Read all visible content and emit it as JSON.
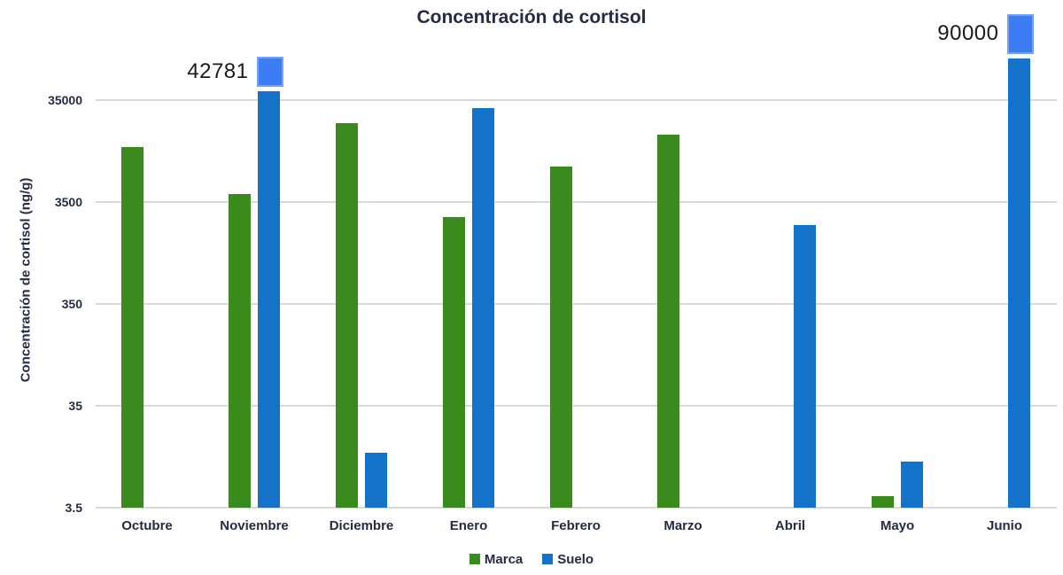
{
  "chart_data": {
    "type": "bar",
    "title": "Concentración de cortisol",
    "ylabel": "Concentración de cortisol (ng/g)",
    "xlabel": "",
    "y_scale": "log",
    "y_ticks": [
      "35000",
      "3500",
      "350",
      "35",
      "3.5"
    ],
    "y_tick_values": [
      35000,
      3500,
      350,
      35,
      3.5
    ],
    "ylim": [
      3.5,
      100000
    ],
    "grid": true,
    "legend_position": "bottom",
    "categories": [
      "Octubre",
      "Noviembre",
      "Diciembre",
      "Enero",
      "Febrero",
      "Marzo",
      "Abril",
      "Mayo",
      "Junio"
    ],
    "series": [
      {
        "name": "Marca",
        "color": "#3A8A1E",
        "values": [
          12000,
          4200,
          21000,
          2500,
          7800,
          16000,
          null,
          4.5,
          null
        ]
      },
      {
        "name": "Suelo",
        "color": "#1473C8",
        "values": [
          null,
          42781,
          12,
          29000,
          null,
          null,
          2100,
          10,
          90000
        ]
      }
    ],
    "annotations": [
      {
        "category": "Noviembre",
        "series": "Suelo",
        "label": "42781",
        "value": 42781,
        "marker_color": "#3D7CF2"
      },
      {
        "category": "Junio",
        "series": "Suelo",
        "label": "90000",
        "value": 90000,
        "marker_color": "#3D7CF2"
      }
    ],
    "colors": {
      "gridline": "#D9D9D9",
      "axis_text": "#252A45",
      "annotation_text": "#1A1A1A"
    }
  }
}
